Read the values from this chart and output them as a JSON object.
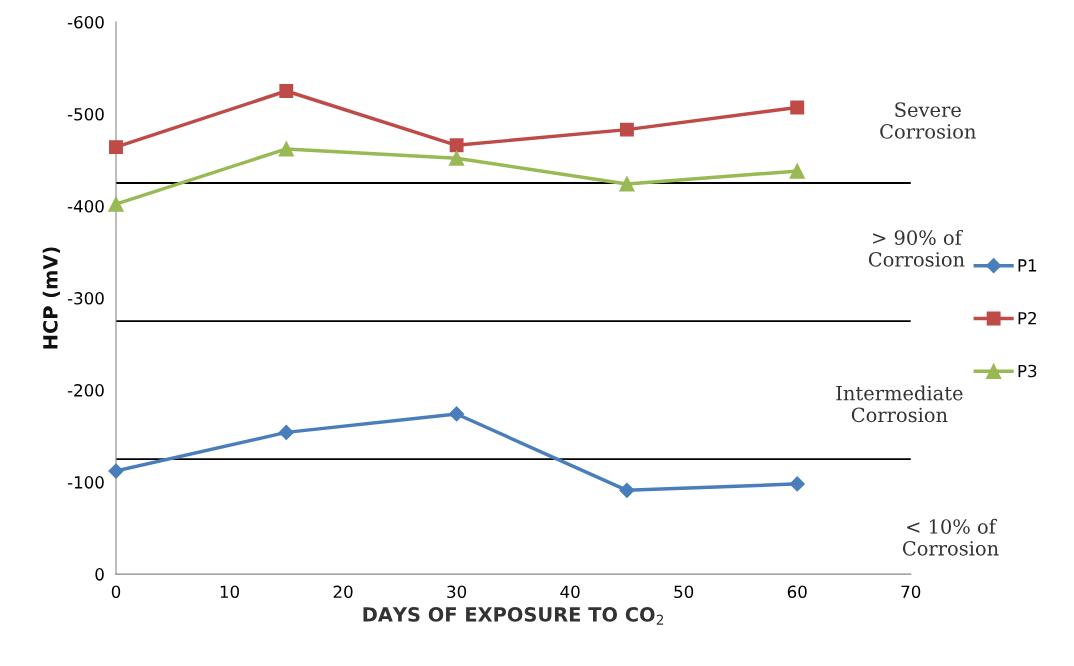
{
  "chart_data": {
    "type": "line",
    "xlabel": "DAYS OF EXPOSURE TO CO$_{2}$",
    "ylabel": "HCP (mV)",
    "x": [
      0,
      15,
      30,
      45,
      60
    ],
    "series": [
      {
        "name": "P1",
        "color": "#4a7ebb",
        "marker": "diamond",
        "values": [
          -112,
          -154,
          -174,
          -91,
          -98
        ]
      },
      {
        "name": "P2",
        "color": "#be4b48",
        "marker": "square",
        "values": [
          -464,
          -525,
          -466,
          -483,
          -507
        ]
      },
      {
        "name": "P3",
        "color": "#98b954",
        "marker": "triangle",
        "values": [
          -402,
          -462,
          -452,
          -424,
          -438
        ]
      }
    ],
    "xlim": [
      0,
      70
    ],
    "xticks": [
      0,
      10,
      20,
      30,
      40,
      50,
      60,
      70
    ],
    "ylim": [
      0,
      -600
    ],
    "yticks": [
      0,
      -100,
      -200,
      -300,
      -400,
      -500,
      -600
    ],
    "ref_lines": [
      {
        "axis": "y",
        "value": -425,
        "color": "#000000"
      },
      {
        "axis": "y",
        "value": -275,
        "color": "#000000"
      },
      {
        "axis": "y",
        "value": -125,
        "color": "#000000"
      }
    ],
    "annotations": [
      "Severe\nCorrosion",
      "> 90% of\nCorrosion",
      "Intermediate\nCorrosion",
      "< 10% of\nCorrosion"
    ],
    "grid": false,
    "legend": "right",
    "line_style": "solid"
  }
}
